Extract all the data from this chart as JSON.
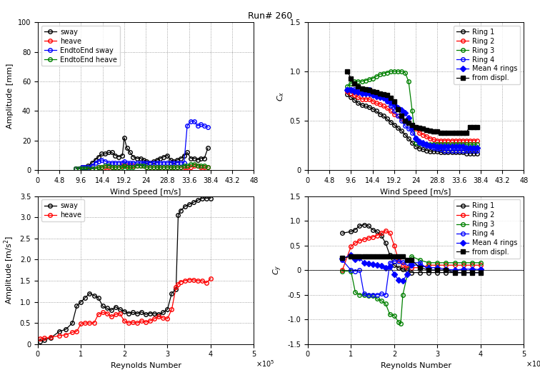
{
  "title": "Run# 260",
  "top_left": {
    "xlabel": "Wind Speed [m/s]",
    "ylabel": "Amplitude [mm]",
    "xlim": [
      0,
      48
    ],
    "ylim": [
      0,
      100
    ],
    "xticks": [
      0,
      4.8,
      9.6,
      14.4,
      19.2,
      24,
      28.8,
      33.6,
      38.4,
      43.2,
      48
    ],
    "xtick_labels": [
      "0",
      "4.8",
      "9.6",
      "14.4",
      "19.2",
      "24",
      "28.8",
      "33.6",
      "38.4",
      "43.2",
      "48"
    ],
    "yticks": [
      0,
      20,
      40,
      60,
      80,
      100
    ],
    "sway_x": [
      8.5,
      9.2,
      9.8,
      10.5,
      11.2,
      12.0,
      12.8,
      13.5,
      14.2,
      15.0,
      15.8,
      16.5,
      17.2,
      18.0,
      18.8,
      19.2,
      19.8,
      20.5,
      21.2,
      22.0,
      22.8,
      23.5,
      24.2,
      25.0,
      25.8,
      26.5,
      27.2,
      28.0,
      28.8,
      29.5,
      30.2,
      31.0,
      31.8,
      32.5,
      33.2,
      34.0,
      34.8,
      35.5,
      36.2,
      37.0,
      37.8
    ],
    "sway_y": [
      1,
      1,
      2,
      2,
      3,
      5,
      7,
      9,
      11,
      11,
      12,
      12,
      10,
      9,
      10,
      22,
      15,
      12,
      9,
      8,
      8,
      7,
      6,
      5,
      6,
      7,
      8,
      9,
      10,
      7,
      6,
      7,
      8,
      10,
      12,
      8,
      8,
      7,
      8,
      8,
      15
    ],
    "heave_x": [
      8.5,
      9.2,
      9.8,
      10.5,
      11.2,
      12.0,
      12.8,
      13.5,
      14.2,
      15.0,
      15.8,
      16.5,
      17.2,
      18.0,
      18.8,
      19.2,
      19.8,
      20.5,
      21.2,
      22.0,
      22.8,
      23.5,
      24.2,
      25.0,
      25.8,
      26.5,
      27.2,
      28.0,
      28.8,
      29.5,
      30.2,
      31.0,
      31.8,
      32.5,
      33.2,
      34.0,
      34.8,
      35.5,
      36.2,
      37.0,
      37.8
    ],
    "heave_y": [
      1,
      1,
      1,
      1,
      1,
      1,
      1,
      2,
      2,
      2,
      2,
      2,
      2,
      2,
      3,
      3,
      3,
      3,
      3,
      3,
      3,
      3,
      2,
      2,
      2,
      2,
      2,
      2,
      2,
      2,
      2,
      2,
      2,
      2,
      2,
      2,
      3,
      3,
      2,
      2,
      2
    ],
    "ete_sway_x": [
      8.5,
      9.2,
      9.8,
      10.5,
      11.2,
      12.0,
      12.8,
      13.5,
      14.2,
      15.0,
      15.8,
      16.5,
      17.2,
      18.0,
      18.8,
      19.2,
      19.8,
      20.5,
      21.2,
      22.0,
      22.8,
      23.5,
      24.2,
      25.0,
      25.8,
      26.5,
      27.2,
      28.0,
      28.8,
      29.5,
      30.2,
      31.0,
      31.8,
      32.5,
      33.2,
      34.0,
      34.8,
      35.5,
      36.2,
      37.0,
      37.8
    ],
    "ete_sway_y": [
      1,
      1,
      2,
      2,
      2,
      3,
      5,
      6,
      7,
      6,
      5,
      5,
      5,
      5,
      5,
      6,
      5,
      5,
      5,
      5,
      5,
      5,
      5,
      5,
      5,
      5,
      5,
      5,
      5,
      5,
      5,
      5,
      5,
      5,
      30,
      33,
      33,
      30,
      31,
      30,
      29
    ],
    "ete_heave_x": [
      8.5,
      9.2,
      9.8,
      10.5,
      11.2,
      12.0,
      12.8,
      13.5,
      14.2,
      15.0,
      15.8,
      16.5,
      17.2,
      18.0,
      18.8,
      19.2,
      19.8,
      20.5,
      21.2,
      22.0,
      22.8,
      23.5,
      24.2,
      25.0,
      25.8,
      26.5,
      27.2,
      28.0,
      28.8,
      29.5,
      30.2,
      31.0,
      31.8,
      32.5,
      33.2,
      34.0,
      34.8,
      35.5,
      36.2,
      37.0,
      37.8
    ],
    "ete_heave_y": [
      1,
      1,
      1,
      1,
      1,
      1,
      1,
      2,
      2,
      3,
      3,
      2,
      2,
      2,
      2,
      3,
      2,
      2,
      2,
      3,
      3,
      3,
      2,
      2,
      2,
      2,
      2,
      2,
      2,
      2,
      2,
      2,
      2,
      3,
      3,
      4,
      4,
      3,
      3,
      3,
      2
    ]
  },
  "top_right": {
    "xlabel": "Wind Speed [m/s]",
    "ylabel": "C_x",
    "xlim": [
      0,
      48
    ],
    "ylim": [
      0,
      1.5
    ],
    "xticks": [
      0,
      4.8,
      9.6,
      14.4,
      19.2,
      24,
      28.8,
      33.6,
      38.4,
      43.2,
      48
    ],
    "xtick_labels": [
      "0",
      "4.8",
      "9.6",
      "14.4",
      "19.2",
      "24",
      "28.8",
      "33.6",
      "38.4",
      "43.2",
      "48"
    ],
    "yticks": [
      0,
      0.5,
      1.0,
      1.5
    ],
    "ring1_x": [
      8.8,
      9.6,
      10.4,
      11.2,
      12.0,
      12.8,
      13.6,
      14.4,
      15.2,
      16.0,
      16.8,
      17.6,
      18.4,
      19.2,
      20.0,
      20.8,
      21.6,
      22.4,
      23.2,
      24.0,
      24.8,
      25.6,
      26.4,
      27.2,
      28.0,
      28.8,
      29.6,
      30.4,
      31.2,
      32.0,
      32.8,
      33.6,
      34.4,
      35.2,
      36.0,
      36.8,
      37.6
    ],
    "ring1_y": [
      0.77,
      0.74,
      0.71,
      0.68,
      0.66,
      0.65,
      0.64,
      0.62,
      0.6,
      0.57,
      0.55,
      0.52,
      0.49,
      0.46,
      0.43,
      0.4,
      0.36,
      0.32,
      0.28,
      0.24,
      0.22,
      0.21,
      0.2,
      0.19,
      0.19,
      0.19,
      0.18,
      0.18,
      0.18,
      0.18,
      0.18,
      0.18,
      0.18,
      0.17,
      0.17,
      0.17,
      0.17
    ],
    "ring2_x": [
      8.8,
      9.6,
      10.4,
      11.2,
      12.0,
      12.8,
      13.6,
      14.4,
      15.2,
      16.0,
      16.8,
      17.6,
      18.4,
      19.2,
      20.0,
      20.8,
      21.6,
      22.4,
      23.2,
      24.0,
      24.8,
      25.6,
      26.4,
      27.2,
      28.0,
      28.8,
      29.6,
      30.4,
      31.2,
      32.0,
      32.8,
      33.6,
      34.4,
      35.2,
      36.0,
      36.8,
      37.6
    ],
    "ring2_y": [
      0.8,
      0.78,
      0.76,
      0.74,
      0.72,
      0.72,
      0.72,
      0.7,
      0.68,
      0.67,
      0.65,
      0.63,
      0.6,
      0.57,
      0.55,
      0.52,
      0.5,
      0.48,
      0.45,
      0.42,
      0.38,
      0.36,
      0.34,
      0.32,
      0.31,
      0.3,
      0.3,
      0.3,
      0.3,
      0.3,
      0.3,
      0.3,
      0.3,
      0.3,
      0.3,
      0.3,
      0.3
    ],
    "ring3_x": [
      8.8,
      9.6,
      10.4,
      11.2,
      12.0,
      12.8,
      13.6,
      14.4,
      15.2,
      16.0,
      16.8,
      17.6,
      18.4,
      19.2,
      20.0,
      20.8,
      21.6,
      22.4,
      23.2,
      24.0,
      24.8,
      25.6,
      26.4,
      27.2,
      28.0,
      28.8,
      29.6,
      30.4,
      31.2,
      32.0,
      32.8,
      33.6,
      34.4,
      35.2,
      36.0,
      36.8,
      37.6
    ],
    "ring3_y": [
      0.85,
      0.88,
      0.9,
      0.9,
      0.9,
      0.91,
      0.92,
      0.93,
      0.95,
      0.97,
      0.98,
      0.99,
      1.0,
      1.0,
      1.0,
      1.0,
      0.99,
      0.9,
      0.6,
      0.28,
      0.27,
      0.27,
      0.26,
      0.26,
      0.26,
      0.26,
      0.26,
      0.26,
      0.26,
      0.26,
      0.26,
      0.26,
      0.26,
      0.26,
      0.26,
      0.26,
      0.26
    ],
    "ring4_x": [
      8.8,
      9.6,
      10.4,
      11.2,
      12.0,
      12.8,
      13.6,
      14.4,
      15.2,
      16.0,
      16.8,
      17.6,
      18.4,
      19.2,
      20.0,
      20.8,
      21.6,
      22.4,
      23.2,
      24.0,
      24.8,
      25.6,
      26.4,
      27.2,
      28.0,
      28.8,
      29.6,
      30.4,
      31.2,
      32.0,
      32.8,
      33.6,
      34.4,
      35.2,
      36.0,
      36.8,
      37.6
    ],
    "ring4_y": [
      0.82,
      0.82,
      0.82,
      0.82,
      0.82,
      0.82,
      0.82,
      0.8,
      0.78,
      0.76,
      0.74,
      0.7,
      0.65,
      0.6,
      0.55,
      0.5,
      0.45,
      0.42,
      0.38,
      0.33,
      0.28,
      0.26,
      0.25,
      0.24,
      0.23,
      0.22,
      0.21,
      0.2,
      0.2,
      0.2,
      0.2,
      0.2,
      0.2,
      0.2,
      0.2,
      0.2,
      0.2
    ],
    "mean_x": [
      8.8,
      9.6,
      10.4,
      11.2,
      12.0,
      12.8,
      13.6,
      14.4,
      15.2,
      16.0,
      16.8,
      17.6,
      18.4,
      19.2,
      20.0,
      20.8,
      21.6,
      22.4,
      23.2,
      24.0,
      24.8,
      25.6,
      26.4,
      27.2,
      28.0,
      28.8,
      29.6,
      30.4,
      31.2,
      32.0,
      32.8,
      33.6,
      34.4,
      35.2,
      36.0,
      36.8,
      37.6
    ],
    "mean_y": [
      0.81,
      0.81,
      0.8,
      0.79,
      0.78,
      0.78,
      0.78,
      0.76,
      0.75,
      0.74,
      0.73,
      0.71,
      0.69,
      0.66,
      0.63,
      0.61,
      0.58,
      0.53,
      0.43,
      0.32,
      0.29,
      0.28,
      0.26,
      0.25,
      0.25,
      0.24,
      0.24,
      0.24,
      0.24,
      0.24,
      0.24,
      0.24,
      0.24,
      0.23,
      0.23,
      0.23,
      0.23
    ],
    "displ_x": [
      8.8,
      9.6,
      10.4,
      11.2,
      12.0,
      12.8,
      13.6,
      14.4,
      15.2,
      16.0,
      16.8,
      17.6,
      18.4,
      19.2,
      20.0,
      20.8,
      21.6,
      22.4,
      23.2,
      24.0,
      24.8,
      25.6,
      26.4,
      27.2,
      28.0,
      28.8,
      29.6,
      30.4,
      31.2,
      32.0,
      32.8,
      33.6,
      34.4,
      35.2,
      36.0,
      36.8,
      37.6
    ],
    "displ_y": [
      1.0,
      0.93,
      0.88,
      0.85,
      0.83,
      0.82,
      0.81,
      0.8,
      0.79,
      0.78,
      0.77,
      0.76,
      0.73,
      0.7,
      0.62,
      0.55,
      0.5,
      0.48,
      0.46,
      0.44,
      0.43,
      0.42,
      0.41,
      0.4,
      0.39,
      0.39,
      0.38,
      0.38,
      0.38,
      0.38,
      0.38,
      0.38,
      0.38,
      0.38,
      0.44,
      0.44,
      0.44
    ]
  },
  "bot_left": {
    "xlabel": "Reynolds Number",
    "ylabel": "Amplitude [m/s²]",
    "xlim": [
      0,
      500000
    ],
    "ylim": [
      0,
      3.5
    ],
    "xticks": [
      0,
      100000,
      200000,
      300000,
      400000,
      500000
    ],
    "xtick_labels": [
      "0",
      "1",
      "2",
      "3",
      "4",
      "5"
    ],
    "yticks": [
      0,
      0.5,
      1.0,
      1.5,
      2.0,
      2.5,
      3.0,
      3.5
    ],
    "sway_x": [
      5000,
      15000,
      30000,
      50000,
      65000,
      80000,
      90000,
      100000,
      110000,
      120000,
      130000,
      140000,
      150000,
      160000,
      170000,
      180000,
      190000,
      200000,
      210000,
      220000,
      230000,
      240000,
      250000,
      260000,
      270000,
      280000,
      290000,
      300000,
      310000,
      320000,
      325000,
      330000,
      340000,
      350000,
      360000,
      370000,
      380000,
      390000,
      400000
    ],
    "sway_y": [
      0.07,
      0.1,
      0.15,
      0.3,
      0.35,
      0.5,
      0.9,
      1.0,
      1.1,
      1.2,
      1.15,
      1.1,
      0.9,
      0.85,
      0.8,
      0.88,
      0.82,
      0.78,
      0.73,
      0.75,
      0.72,
      0.76,
      0.7,
      0.73,
      0.72,
      0.7,
      0.75,
      0.82,
      1.2,
      1.3,
      3.05,
      3.15,
      3.25,
      3.3,
      3.35,
      3.4,
      3.45,
      3.45,
      3.45
    ],
    "heave_x": [
      5000,
      15000,
      30000,
      50000,
      65000,
      80000,
      90000,
      100000,
      110000,
      120000,
      130000,
      140000,
      150000,
      160000,
      170000,
      180000,
      190000,
      200000,
      210000,
      220000,
      230000,
      240000,
      250000,
      260000,
      270000,
      280000,
      290000,
      300000,
      310000,
      320000,
      325000,
      330000,
      340000,
      350000,
      360000,
      370000,
      380000,
      390000,
      400000
    ],
    "heave_y": [
      0.13,
      0.14,
      0.16,
      0.2,
      0.22,
      0.28,
      0.3,
      0.48,
      0.5,
      0.5,
      0.5,
      0.7,
      0.75,
      0.73,
      0.65,
      0.7,
      0.72,
      0.55,
      0.5,
      0.52,
      0.5,
      0.55,
      0.52,
      0.55,
      0.6,
      0.65,
      0.62,
      0.6,
      0.82,
      1.35,
      1.42,
      1.47,
      1.5,
      1.52,
      1.52,
      1.5,
      1.5,
      1.45,
      1.55
    ]
  },
  "bot_right": {
    "xlabel": "Reynolds Number",
    "ylabel": "C_y",
    "xlim": [
      0,
      500000
    ],
    "ylim": [
      -1.5,
      1.5
    ],
    "xticks": [
      0,
      100000,
      200000,
      300000,
      400000,
      500000
    ],
    "xtick_labels": [
      "0",
      "1",
      "2",
      "3",
      "4",
      "5"
    ],
    "yticks": [
      -1.5,
      -1.0,
      -0.5,
      0,
      0.5,
      1.0,
      1.5
    ],
    "ring1_x": [
      80000,
      100000,
      110000,
      120000,
      130000,
      140000,
      150000,
      160000,
      170000,
      180000,
      190000,
      200000,
      210000,
      220000,
      230000,
      240000,
      260000,
      280000,
      300000,
      320000,
      340000,
      360000,
      380000,
      400000
    ],
    "ring1_y": [
      0.75,
      0.78,
      0.82,
      0.9,
      0.92,
      0.9,
      0.82,
      0.78,
      0.7,
      0.55,
      0.3,
      0.1,
      0.05,
      0.02,
      0.0,
      -0.05,
      -0.05,
      -0.05,
      -0.05,
      -0.05,
      -0.05,
      -0.05,
      -0.05,
      -0.05
    ],
    "ring2_x": [
      80000,
      100000,
      110000,
      120000,
      130000,
      140000,
      150000,
      160000,
      170000,
      180000,
      190000,
      200000,
      210000,
      220000,
      230000,
      240000,
      260000,
      280000,
      300000,
      320000,
      340000,
      360000,
      380000,
      400000
    ],
    "ring2_y": [
      0.0,
      0.48,
      0.55,
      0.6,
      0.62,
      0.65,
      0.67,
      0.7,
      0.75,
      0.8,
      0.75,
      0.5,
      0.2,
      0.1,
      0.05,
      0.05,
      0.05,
      0.1,
      0.1,
      0.1,
      0.1,
      0.1,
      0.1,
      0.1
    ],
    "ring3_x": [
      80000,
      100000,
      110000,
      120000,
      130000,
      140000,
      150000,
      160000,
      170000,
      180000,
      190000,
      200000,
      210000,
      215000,
      220000,
      240000,
      260000,
      280000,
      300000,
      320000,
      340000,
      360000,
      380000,
      400000
    ],
    "ring3_y": [
      -0.02,
      -0.02,
      -0.45,
      -0.5,
      -0.5,
      -0.52,
      -0.52,
      -0.58,
      -0.62,
      -0.68,
      -0.9,
      -0.92,
      -1.05,
      -1.08,
      -0.5,
      0.28,
      0.2,
      0.15,
      0.15,
      0.15,
      0.15,
      0.15,
      0.15,
      0.15
    ],
    "ring4_x": [
      80000,
      100000,
      110000,
      120000,
      130000,
      140000,
      150000,
      160000,
      170000,
      180000,
      190000,
      200000,
      210000,
      220000,
      230000,
      240000,
      260000,
      280000,
      300000,
      320000,
      340000,
      360000,
      380000,
      400000
    ],
    "ring4_y": [
      0.2,
      0.0,
      -0.02,
      0.0,
      -0.48,
      -0.5,
      -0.5,
      -0.5,
      -0.48,
      -0.5,
      0.15,
      0.18,
      0.18,
      0.16,
      0.15,
      0.15,
      0.15,
      0.0,
      0.0,
      0.0,
      -0.05,
      -0.05,
      -0.05,
      -0.05
    ],
    "mean_x": [
      80000,
      100000,
      110000,
      120000,
      130000,
      140000,
      150000,
      160000,
      170000,
      180000,
      190000,
      200000,
      210000,
      220000,
      230000,
      240000,
      260000,
      280000,
      300000,
      320000,
      340000,
      360000,
      380000,
      400000
    ],
    "mean_y": [
      0.23,
      0.31,
      0.22,
      0.25,
      0.14,
      0.13,
      0.12,
      0.1,
      0.09,
      0.04,
      0.08,
      -0.08,
      -0.2,
      -0.22,
      -0.08,
      0.11,
      0.09,
      0.05,
      0.05,
      0.02,
      0.0,
      0.02,
      0.02,
      0.01
    ],
    "displ_x": [
      80000,
      100000,
      110000,
      120000,
      130000,
      140000,
      150000,
      160000,
      170000,
      180000,
      190000,
      200000,
      210000,
      220000,
      230000,
      240000,
      260000,
      280000,
      300000,
      320000,
      340000,
      360000,
      380000,
      400000
    ],
    "displ_y": [
      0.25,
      0.27,
      0.27,
      0.27,
      0.27,
      0.27,
      0.27,
      0.27,
      0.27,
      0.27,
      0.27,
      0.27,
      0.27,
      0.27,
      0.2,
      0.2,
      0.05,
      0.0,
      0.0,
      0.0,
      -0.05,
      -0.05,
      -0.05,
      -0.05
    ]
  }
}
